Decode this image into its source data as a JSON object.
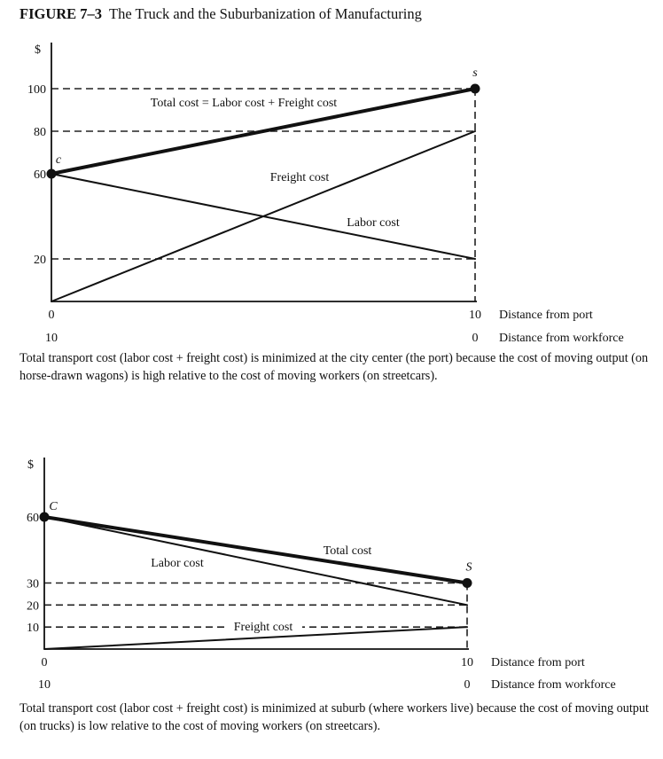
{
  "figure": {
    "number": "FIGURE 7–3",
    "title": "The Truck and the Suburbanization of Manufacturing"
  },
  "chart_data": [
    {
      "type": "line",
      "ylabel": "$",
      "xlabel": "Distance from port",
      "xlabel_secondary": "Distance from workforce",
      "x_ticks": [
        "0",
        "10"
      ],
      "x_ticks_secondary": [
        "10",
        "0"
      ],
      "ylim": [
        0,
        100
      ],
      "y_ticks": [
        20,
        60,
        80,
        100
      ],
      "dashed_guides": [
        20,
        80,
        100
      ],
      "grid": false,
      "series": [
        {
          "name": "Total cost = Labor cost + Freight cost",
          "x": [
            0,
            10
          ],
          "y": [
            60,
            100
          ],
          "bold": true
        },
        {
          "name": "Freight cost",
          "x": [
            0,
            10
          ],
          "y": [
            0,
            80
          ],
          "bold": false
        },
        {
          "name": "Labor cost",
          "x": [
            0,
            10
          ],
          "y": [
            60,
            20
          ],
          "bold": false
        }
      ],
      "points": [
        {
          "label": "c",
          "x": 0,
          "y": 60
        },
        {
          "label": "s",
          "x": 10,
          "y": 100
        }
      ],
      "caption": "Total transport cost (labor cost + freight cost) is minimized at the city center (the port) because the cost of moving output (on horse-drawn wagons) is high relative to the cost of moving workers (on streetcars)."
    },
    {
      "type": "line",
      "ylabel": "$",
      "xlabel": "Distance from port",
      "xlabel_secondary": "Distance from workforce",
      "x_ticks": [
        "0",
        "10"
      ],
      "x_ticks_secondary": [
        "10",
        "0"
      ],
      "ylim": [
        0,
        60
      ],
      "y_ticks": [
        10,
        20,
        30,
        60
      ],
      "dashed_guides": [
        10,
        20,
        30
      ],
      "grid": false,
      "series": [
        {
          "name": "Total cost",
          "x": [
            0,
            10
          ],
          "y": [
            60,
            30
          ],
          "bold": true
        },
        {
          "name": "Labor cost",
          "x": [
            0,
            10
          ],
          "y": [
            60,
            20
          ],
          "bold": false
        },
        {
          "name": "Freight cost",
          "x": [
            0,
            10
          ],
          "y": [
            0,
            10
          ],
          "bold": false
        }
      ],
      "points": [
        {
          "label": "C",
          "x": 0,
          "y": 60
        },
        {
          "label": "S",
          "x": 10,
          "y": 30
        }
      ],
      "caption": "Total transport cost (labor cost + freight cost) is minimized at suburb (where workers live) because the cost of moving output (on trucks) is low relative to the cost of moving workers (on streetcars)."
    }
  ]
}
